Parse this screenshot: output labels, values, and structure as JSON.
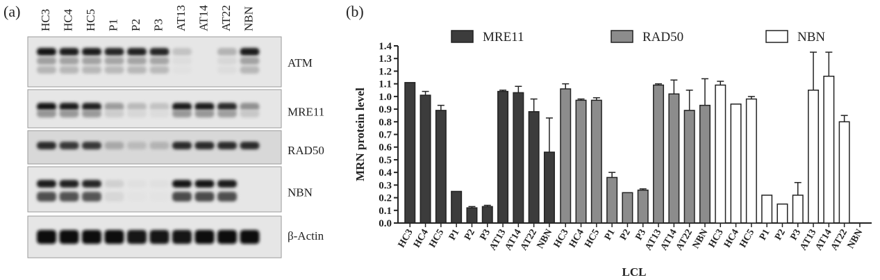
{
  "panel_a": {
    "label": "(a)",
    "lanes": [
      "HC3",
      "HC4",
      "HC5",
      "P1",
      "P2",
      "P3",
      "AT13",
      "AT14",
      "AT22",
      "NBN"
    ],
    "blots": [
      {
        "name": "ATM",
        "intensity": [
          0.95,
          0.92,
          0.92,
          0.88,
          0.9,
          0.88,
          0.18,
          0.0,
          0.25,
          0.92
        ]
      },
      {
        "name": "MRE11",
        "intensity": [
          0.95,
          0.92,
          0.9,
          0.35,
          0.22,
          0.18,
          0.92,
          0.92,
          0.85,
          0.4
        ]
      },
      {
        "name": "RAD50",
        "intensity": [
          0.85,
          0.8,
          0.8,
          0.3,
          0.22,
          0.25,
          0.85,
          0.85,
          0.85,
          0.85
        ]
      },
      {
        "name": "NBN",
        "intensity": [
          0.92,
          0.9,
          0.88,
          0.12,
          0.05,
          0.05,
          0.95,
          0.95,
          0.92,
          0.0
        ]
      },
      {
        "name": "β-Actin",
        "intensity": [
          0.98,
          0.98,
          0.98,
          0.98,
          0.95,
          0.95,
          0.95,
          0.98,
          0.98,
          0.98
        ]
      }
    ]
  },
  "chart_data": {
    "type": "bar",
    "panel_label": "(b)",
    "ylabel": "MRN protein level",
    "xlabel": "LCL",
    "ylim": [
      0,
      1.4
    ],
    "yticks": [
      "0.0",
      "0.1",
      "0.2",
      "0.3",
      "0.4",
      "0.5",
      "0.6",
      "0.7",
      "0.8",
      "0.9",
      "1.0",
      "1.1",
      "1.2",
      "1.3",
      "1.4"
    ],
    "categories": [
      "HC3",
      "HC4",
      "HC5",
      "P1",
      "P2",
      "P3",
      "AT13",
      "AT14",
      "AT22",
      "NBN"
    ],
    "legend_position": "top",
    "series": [
      {
        "name": "MRE11",
        "color": "#3c3c3c",
        "values": [
          1.11,
          1.01,
          0.89,
          0.25,
          0.12,
          0.13,
          1.04,
          1.03,
          0.88,
          0.56
        ],
        "errors": [
          0.0,
          0.03,
          0.04,
          0.0,
          0.01,
          0.01,
          0.01,
          0.05,
          0.1,
          0.27
        ]
      },
      {
        "name": "RAD50",
        "color": "#8c8c8c",
        "values": [
          1.06,
          0.97,
          0.97,
          0.36,
          0.24,
          0.26,
          1.09,
          1.02,
          0.89,
          0.93
        ],
        "errors": [
          0.04,
          0.01,
          0.02,
          0.04,
          0.0,
          0.01,
          0.01,
          0.11,
          0.16,
          0.21
        ]
      },
      {
        "name": "NBN",
        "color": "#ffffff",
        "values": [
          1.09,
          0.94,
          0.98,
          0.22,
          0.15,
          0.22,
          1.05,
          1.16,
          0.8,
          null
        ],
        "errors": [
          0.03,
          0.0,
          0.02,
          0.0,
          0.0,
          0.1,
          0.3,
          0.19,
          0.05,
          null
        ]
      }
    ]
  }
}
